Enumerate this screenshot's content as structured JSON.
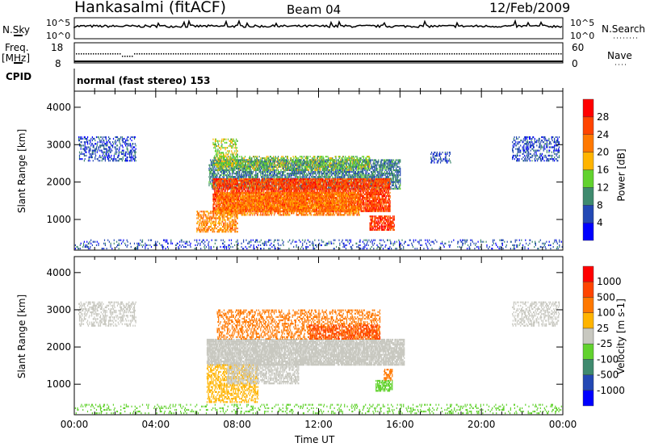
{
  "header": {
    "station": "Hankasalmi (fitACF)",
    "beam": "Beam 04",
    "date": "12/Feb/2009"
  },
  "noise": {
    "left_label": "N.Sky",
    "right_label": "N.Search",
    "ticks_left": [
      "10^5",
      "10^0"
    ],
    "ticks_right": [
      "10^5",
      "10^0"
    ]
  },
  "freq": {
    "left_label_1": "Freq.",
    "left_label_2": "[MHz]",
    "right_label": "Nave",
    "ticks_left": [
      "18",
      "8"
    ],
    "ticks_right": [
      "60",
      "0"
    ]
  },
  "cpid": {
    "label": "CPID",
    "value": "normal (fast stereo) 153"
  },
  "chart_data": [
    {
      "type": "heatmap",
      "title": "Power",
      "xlabel": "Time UT",
      "ylabel": "Slant Range [km]",
      "xlim": [
        0,
        24
      ],
      "ylim": [
        180,
        4430
      ],
      "yticks": [
        "1000",
        "2000",
        "3000",
        "4000"
      ],
      "xticks": [
        "00:00",
        "04:00",
        "08:00",
        "12:00",
        "16:00",
        "20:00",
        "00:00"
      ],
      "colorbar": {
        "label": "Power [dB]",
        "ticks": [
          "4",
          "8",
          "12",
          "16",
          "20",
          "24",
          "28"
        ],
        "edges": [
          0,
          4,
          8,
          12,
          16,
          20,
          24,
          28,
          32
        ],
        "colors": [
          "#0000ff",
          "#2348b4",
          "#3f8a6e",
          "#62d22e",
          "#ffb400",
          "#ff7800",
          "#ff4400",
          "#ff0000"
        ]
      },
      "regions": [
        [
          0.2,
          3.0,
          2550,
          3200,
          6,
          0.35
        ],
        [
          6.6,
          16.0,
          1800,
          2600,
          9,
          0.6
        ],
        [
          7.0,
          14.5,
          2300,
          2700,
          14,
          0.4
        ],
        [
          6.8,
          15.5,
          1200,
          2100,
          26,
          0.75
        ],
        [
          7.0,
          14.0,
          1100,
          1700,
          22,
          0.6
        ],
        [
          6.0,
          8.0,
          650,
          1200,
          21,
          0.5
        ],
        [
          14.5,
          15.7,
          700,
          1100,
          27,
          0.7
        ],
        [
          6.8,
          8.0,
          2400,
          3150,
          15,
          0.35
        ],
        [
          0,
          24,
          200,
          450,
          6,
          0.15
        ],
        [
          21.5,
          23.8,
          2550,
          3200,
          6,
          0.35
        ],
        [
          17.5,
          18.5,
          2500,
          2800,
          6,
          0.3
        ]
      ]
    },
    {
      "type": "heatmap",
      "title": "Velocity",
      "xlabel": "Time UT",
      "ylabel": "Slant Range [km]",
      "xlim": [
        0,
        24
      ],
      "ylim": [
        180,
        4430
      ],
      "yticks": [
        "1000",
        "2000",
        "3000",
        "4000"
      ],
      "xticks": [
        "00:00",
        "04:00",
        "08:00",
        "12:00",
        "16:00",
        "20:00",
        "00:00"
      ],
      "colorbar": {
        "label": "Velocity [m s-1]",
        "ticks": [
          "1000",
          "500",
          "100",
          "25",
          "-25",
          "-100",
          "-500",
          "-1000"
        ],
        "edges": [
          2000,
          1000,
          500,
          100,
          25,
          -25,
          -100,
          -500,
          -1000,
          -2000
        ],
        "colors": [
          "#0000ff",
          "#2348b4",
          "#3f8a6e",
          "#62d22e",
          "#c8c8c0",
          "#ffb400",
          "#ff7800",
          "#ff4400",
          "#ff0000"
        ]
      },
      "regions": [
        [
          0.2,
          3.0,
          2550,
          3200,
          0,
          0.35
        ],
        [
          6.5,
          16.2,
          1500,
          2200,
          0,
          0.8
        ],
        [
          6.5,
          9.0,
          500,
          1500,
          -60,
          0.4
        ],
        [
          7.5,
          11.0,
          1000,
          1500,
          0,
          0.5
        ],
        [
          7.0,
          15.0,
          2200,
          3000,
          -300,
          0.35
        ],
        [
          11.5,
          15.0,
          2200,
          2600,
          -700,
          0.4
        ],
        [
          14.8,
          15.6,
          800,
          1100,
          60,
          0.6
        ],
        [
          15.2,
          15.6,
          1100,
          1400,
          -300,
          0.5
        ],
        [
          0,
          24,
          200,
          450,
          50,
          0.15
        ],
        [
          21.5,
          23.8,
          2550,
          3200,
          0,
          0.35
        ]
      ]
    }
  ]
}
